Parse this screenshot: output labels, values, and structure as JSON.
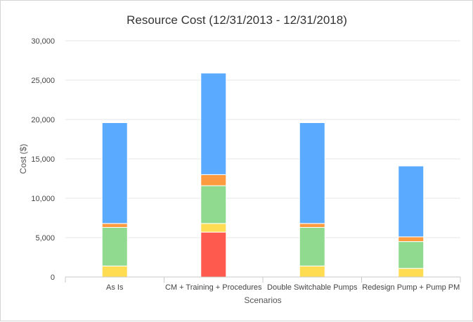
{
  "chart_data": {
    "type": "bar",
    "stacked": true,
    "title": "Resource Cost (12/31/2013 - 12/31/2018)",
    "xlabel": "Scenarios",
    "ylabel": "Cost ($)",
    "ylim": [
      0,
      30000
    ],
    "yticks": [
      0,
      5000,
      10000,
      15000,
      20000,
      25000,
      30000
    ],
    "ytick_labels": [
      "0",
      "5,000",
      "10,000",
      "15,000",
      "20,000",
      "25,000",
      "30,000"
    ],
    "grid": true,
    "categories": [
      "As Is",
      "CM + Training + Procedures",
      "Double Switchable Pumps",
      "Redesign Pump + Pump PM"
    ],
    "series": [
      {
        "color": "#ff5a4e",
        "values": [
          0,
          5700,
          0,
          0
        ]
      },
      {
        "color": "#ffdc52",
        "values": [
          1400,
          1100,
          1400,
          1100
        ]
      },
      {
        "color": "#8fda8f",
        "values": [
          4900,
          4800,
          4900,
          3400
        ]
      },
      {
        "color": "#ff9a3f",
        "values": [
          500,
          1400,
          500,
          600
        ]
      },
      {
        "color": "#5aabff",
        "values": [
          12800,
          12900,
          12800,
          9000
        ]
      }
    ]
  }
}
